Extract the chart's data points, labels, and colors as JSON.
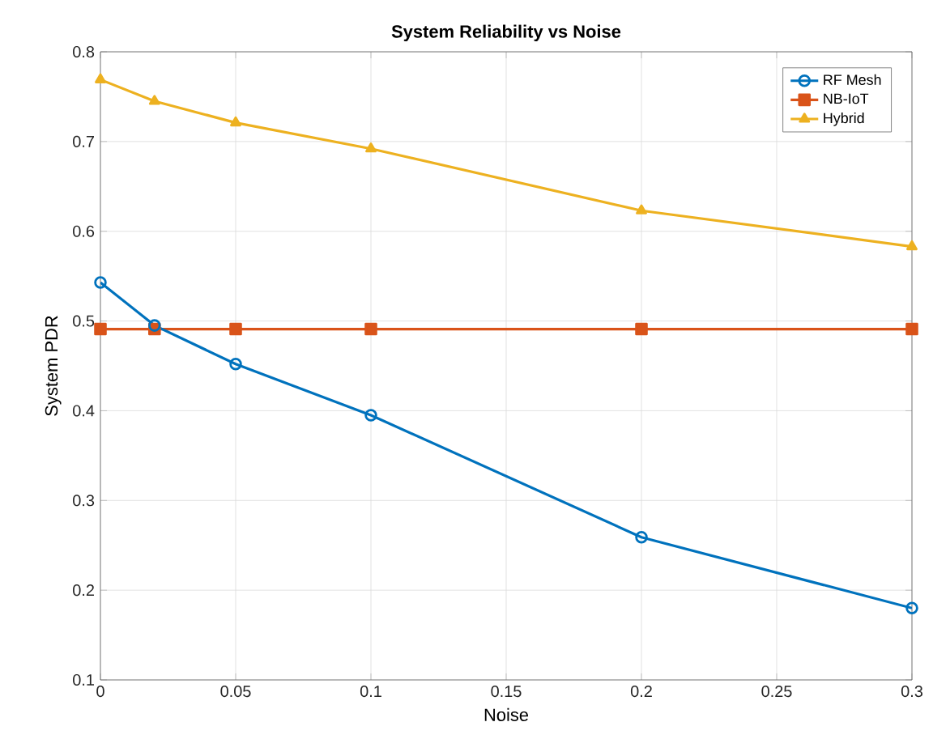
{
  "chart_data": {
    "type": "line",
    "title": "**System Reliability vs Noise**",
    "xlabel": "Noise",
    "ylabel": "System PDR",
    "x": [
      0,
      0.02,
      0.05,
      0.1,
      0.2,
      0.3
    ],
    "series": [
      {
        "name": "RF Mesh",
        "color": "#0072bd",
        "marker": "circle",
        "values": [
          0.543,
          0.495,
          0.452,
          0.395,
          0.259,
          0.18
        ]
      },
      {
        "name": "NB-IoT",
        "color": "#d95319",
        "marker": "square",
        "values": [
          0.491,
          0.491,
          0.491,
          0.491,
          0.491,
          0.491
        ]
      },
      {
        "name": "Hybrid",
        "color": "#edb120",
        "marker": "triangle",
        "values": [
          0.769,
          0.745,
          0.721,
          0.692,
          0.623,
          0.583
        ]
      }
    ],
    "xlim": [
      0,
      0.3
    ],
    "ylim": [
      0.1,
      0.8
    ],
    "xticks": [
      0,
      0.05,
      0.1,
      0.15,
      0.2,
      0.25,
      0.3
    ],
    "yticks": [
      0.1,
      0.2,
      0.3,
      0.4,
      0.5,
      0.6,
      0.7,
      0.8
    ],
    "grid": true,
    "legend": "top right",
    "line_style": "solid"
  }
}
